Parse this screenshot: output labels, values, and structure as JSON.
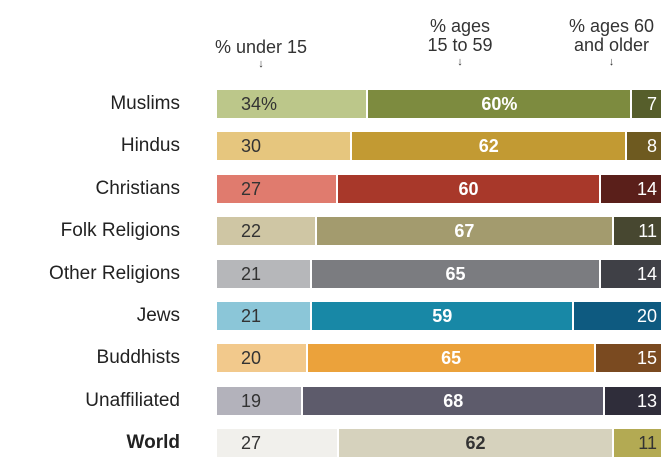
{
  "chart_data": {
    "type": "bar",
    "stacked": true,
    "orientation": "horizontal",
    "column_headers": [
      "% under 15",
      "% ages 15 to 59",
      "% ages 60 and older"
    ],
    "column_header_lines": [
      [
        "% under 15"
      ],
      [
        "% ages",
        "15 to 59"
      ],
      [
        "% ages 60",
        "and older"
      ]
    ],
    "categories": [
      "Muslims",
      "Hindus",
      "Christians",
      "Folk Religions",
      "Other Religions",
      "Jews",
      "Buddhists",
      "Unaffiliated",
      "World"
    ],
    "series": [
      {
        "name": "% under 15",
        "values": [
          34,
          30,
          27,
          22,
          21,
          21,
          20,
          19,
          27
        ]
      },
      {
        "name": "% ages 15 to 59",
        "values": [
          60,
          62,
          60,
          67,
          65,
          59,
          65,
          68,
          62
        ]
      },
      {
        "name": "% ages 60 and older",
        "values": [
          7,
          8,
          14,
          11,
          14,
          20,
          15,
          13,
          11
        ]
      }
    ],
    "value_labels": [
      [
        "34%",
        "60%",
        "7"
      ],
      [
        "30",
        "62",
        "8"
      ],
      [
        "27",
        "60",
        "14"
      ],
      [
        "22",
        "67",
        "11"
      ],
      [
        "21",
        "65",
        "14"
      ],
      [
        "21",
        "59",
        "20"
      ],
      [
        "20",
        "65",
        "15"
      ],
      [
        "19",
        "68",
        "13"
      ],
      [
        "27",
        "62",
        "11"
      ]
    ],
    "colors": [
      [
        "#bcc78a",
        "#7d8b3f",
        "#565e2b"
      ],
      [
        "#e6c67e",
        "#c29a33",
        "#6e5a20"
      ],
      [
        "#e07b6e",
        "#a8382a",
        "#5a1f1a"
      ],
      [
        "#cfc6a4",
        "#a39b6e",
        "#474730"
      ],
      [
        "#b6b7ba",
        "#7b7c80",
        "#3f4046"
      ],
      [
        "#8bc6d8",
        "#1888a6",
        "#0e5a80"
      ],
      [
        "#f2c98c",
        "#eba23b",
        "#7a4a20"
      ],
      [
        "#b3b2bb",
        "#5d5b6b",
        "#2f2d3a"
      ],
      [
        "#f1f0ec",
        "#d6d2bd",
        "#b3aa53"
      ]
    ],
    "xlim": [
      0,
      100
    ],
    "bold_category": "World"
  }
}
